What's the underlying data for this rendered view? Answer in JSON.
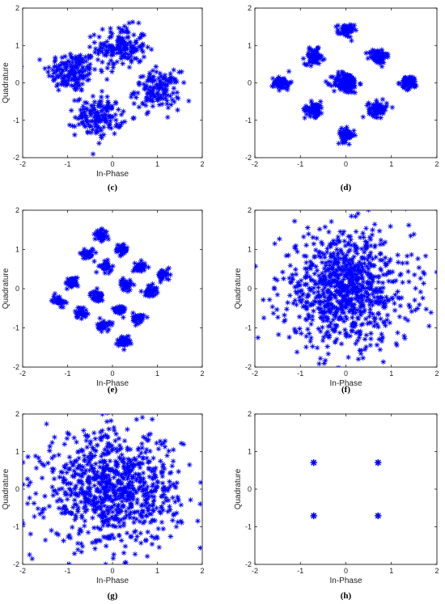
{
  "chart_data": [
    {
      "type": "scatter",
      "panel": "c",
      "caption": "(c)",
      "xlabel": "In-Phase",
      "ylabel": "Quadrature",
      "xlim": [
        -2,
        2
      ],
      "ylim": [
        -2,
        2
      ],
      "xticks": [
        "-2",
        "-1",
        "0",
        "1",
        "2"
      ],
      "yticks": [
        "-2",
        "-1",
        "0",
        "1",
        "2"
      ],
      "marker": "asterisk",
      "color": "#0000ff",
      "clusters": [
        {
          "center": [
            -0.9,
            0.3
          ],
          "spread": 0.28,
          "count": 170
        },
        {
          "center": [
            0.2,
            0.95
          ],
          "spread": 0.28,
          "count": 170
        },
        {
          "center": [
            1.0,
            -0.2
          ],
          "spread": 0.25,
          "count": 150
        },
        {
          "center": [
            -0.3,
            -0.9
          ],
          "spread": 0.26,
          "count": 160
        }
      ]
    },
    {
      "type": "scatter",
      "panel": "d",
      "caption": "(d)",
      "xlabel": "",
      "ylabel": "",
      "xlim": [
        -2,
        2
      ],
      "ylim": [
        -2,
        2
      ],
      "xticks": [
        "-2",
        "-1",
        "0",
        "1",
        "2"
      ],
      "yticks": [
        "-2",
        "-1",
        "0",
        "1",
        "2"
      ],
      "marker": "asterisk",
      "color": "#0000ff",
      "clusters": [
        {
          "center": [
            0,
            1.4
          ],
          "spread": 0.09,
          "count": 60
        },
        {
          "center": [
            -0.7,
            0.7
          ],
          "spread": 0.1,
          "count": 80
        },
        {
          "center": [
            0.7,
            0.7
          ],
          "spread": 0.1,
          "count": 80
        },
        {
          "center": [
            -1.4,
            0
          ],
          "spread": 0.09,
          "count": 60
        },
        {
          "center": [
            0,
            0
          ],
          "spread": 0.14,
          "count": 140
        },
        {
          "center": [
            1.4,
            0
          ],
          "spread": 0.09,
          "count": 60
        },
        {
          "center": [
            -0.7,
            -0.7
          ],
          "spread": 0.1,
          "count": 80
        },
        {
          "center": [
            0.7,
            -0.7
          ],
          "spread": 0.1,
          "count": 80
        },
        {
          "center": [
            0,
            -1.4
          ],
          "spread": 0.09,
          "count": 60
        }
      ]
    },
    {
      "type": "scatter",
      "panel": "e",
      "caption": "(e)",
      "xlabel": "In-Phase",
      "ylabel": "Quadrature",
      "xlim": [
        -2,
        2
      ],
      "ylim": [
        -2,
        2
      ],
      "xticks": [
        "-2",
        "-1",
        "0",
        "1",
        "2"
      ],
      "yticks": [
        "-2",
        "-1",
        "0",
        "1",
        "2"
      ],
      "marker": "asterisk",
      "color": "#0000ff",
      "clusters": [
        {
          "center": [
            -0.25,
            1.35
          ],
          "spread": 0.07,
          "count": 45
        },
        {
          "center": [
            0.2,
            1.0
          ],
          "spread": 0.07,
          "count": 40
        },
        {
          "center": [
            -0.55,
            0.9
          ],
          "spread": 0.07,
          "count": 40
        },
        {
          "center": [
            -0.15,
            0.55
          ],
          "spread": 0.07,
          "count": 40
        },
        {
          "center": [
            0.6,
            0.55
          ],
          "spread": 0.07,
          "count": 40
        },
        {
          "center": [
            1.15,
            0.35
          ],
          "spread": 0.07,
          "count": 40
        },
        {
          "center": [
            -0.9,
            0.15
          ],
          "spread": 0.07,
          "count": 40
        },
        {
          "center": [
            0.3,
            0.1
          ],
          "spread": 0.07,
          "count": 40
        },
        {
          "center": [
            0.85,
            -0.05
          ],
          "spread": 0.07,
          "count": 40
        },
        {
          "center": [
            -1.2,
            -0.3
          ],
          "spread": 0.07,
          "count": 40
        },
        {
          "center": [
            -0.35,
            -0.2
          ],
          "spread": 0.07,
          "count": 40
        },
        {
          "center": [
            -0.7,
            -0.6
          ],
          "spread": 0.07,
          "count": 40
        },
        {
          "center": [
            0.15,
            -0.55
          ],
          "spread": 0.07,
          "count": 40
        },
        {
          "center": [
            0.6,
            -0.75
          ],
          "spread": 0.07,
          "count": 40
        },
        {
          "center": [
            -0.2,
            -0.95
          ],
          "spread": 0.07,
          "count": 40
        },
        {
          "center": [
            0.25,
            -1.35
          ],
          "spread": 0.07,
          "count": 45
        }
      ]
    },
    {
      "type": "scatter",
      "panel": "f",
      "caption": "(f)",
      "xlabel": "In-Phase",
      "ylabel": "Quadrature",
      "xlim": [
        -2,
        2
      ],
      "ylim": [
        -2,
        2
      ],
      "xticks": [
        "-2",
        "-1",
        "0",
        "1",
        "2"
      ],
      "yticks": [
        "-2",
        "-1",
        "0",
        "1",
        "2"
      ],
      "marker": "asterisk",
      "color": "#0000ff",
      "clusters": [
        {
          "center": [
            0,
            0
          ],
          "spread": 0.72,
          "count": 900
        }
      ]
    },
    {
      "type": "scatter",
      "panel": "g",
      "caption": "(g)",
      "xlabel": "In-Phase",
      "ylabel": "Quadrature",
      "xlim": [
        -2,
        2
      ],
      "ylim": [
        -2,
        2
      ],
      "xticks": [
        "-2",
        "-1",
        "0",
        "1",
        "2"
      ],
      "yticks": [
        "-2",
        "-1",
        "0",
        "1",
        "2"
      ],
      "marker": "asterisk",
      "color": "#0000ff",
      "clusters": [
        {
          "center": [
            0,
            0
          ],
          "spread": 0.75,
          "count": 900
        }
      ]
    },
    {
      "type": "scatter",
      "panel": "h",
      "caption": "(h)",
      "xlabel": "In-Phase",
      "ylabel": "Quadrature",
      "xlim": [
        -2,
        2
      ],
      "ylim": [
        -2,
        2
      ],
      "xticks": [
        "-2",
        "-1",
        "0",
        "1",
        "2"
      ],
      "yticks": [
        "-2",
        "-1",
        "0",
        "1",
        "2"
      ],
      "marker": "asterisk",
      "color": "#0000ff",
      "points": [
        [
          -0.707,
          0.707
        ],
        [
          0.707,
          0.707
        ],
        [
          -0.707,
          -0.707
        ],
        [
          0.707,
          -0.707
        ]
      ]
    }
  ]
}
